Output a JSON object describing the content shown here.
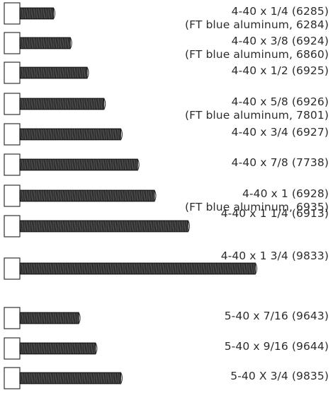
{
  "screws": [
    {
      "label": "4-40 x 1/4 (6285)",
      "sub": "(FT blue aluminum, 6284)",
      "thread_in": 0.25
    },
    {
      "label": "4-40 x 3/8 (6924)",
      "sub": "(FT blue aluminum, 6860)",
      "thread_in": 0.375
    },
    {
      "label": "4-40 x 1/2 (6925)",
      "sub": "",
      "thread_in": 0.5
    },
    {
      "label": "4-40 x 5/8 (6926)",
      "sub": "(FT blue aluminum, 7801)",
      "thread_in": 0.625
    },
    {
      "label": "4-40 x 3/4 (6927)",
      "sub": "",
      "thread_in": 0.75
    },
    {
      "label": "4-40 x 7/8 (7738)",
      "sub": "",
      "thread_in": 0.875
    },
    {
      "label": "4-40 x 1 (6928)",
      "sub": "(FT blue aluminum, 6935)",
      "thread_in": 1.0
    },
    {
      "label": "4-40 x 1 1/4 (6913)",
      "sub": "",
      "thread_in": 1.25
    },
    {
      "label": "4-40 x 1 3/4 (9833)",
      "sub": "",
      "thread_in": 1.75
    },
    {
      "label": "5-40 x 7/16 (9643)",
      "sub": "",
      "thread_in": 0.4375
    },
    {
      "label": "5-40 x 9/16 (9644)",
      "sub": "",
      "thread_in": 0.5625
    },
    {
      "label": "5-40 X 3/4 (9835)",
      "sub": "",
      "thread_in": 0.75
    }
  ]
}
